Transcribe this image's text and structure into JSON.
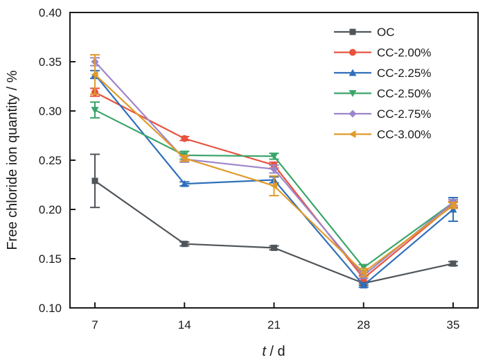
{
  "chart_data": {
    "type": "line",
    "title": "",
    "xlabel_italic": "t",
    "xlabel_rest": " / d",
    "ylabel": "Free chloride ion quantity / %",
    "x": [
      7,
      14,
      21,
      28,
      35
    ],
    "x_tick_labels": [
      "7",
      "14",
      "21",
      "28",
      "35"
    ],
    "xlim": [
      5,
      38.5
    ],
    "ylim": [
      0.1,
      0.4
    ],
    "y_ticks": [
      0.1,
      0.15,
      0.2,
      0.25,
      0.3,
      0.35,
      0.4
    ],
    "y_tick_labels": [
      "0.10",
      "0.15",
      "0.20",
      "0.25",
      "0.30",
      "0.35",
      "0.40"
    ],
    "grid": false,
    "legend_position": "top-right",
    "series": [
      {
        "name": "OC",
        "color": "#505559",
        "marker": "square",
        "values": [
          0.229,
          0.165,
          0.161,
          0.125,
          0.145
        ],
        "errors": [
          0.027,
          0.002,
          0.002,
          0.002,
          0.002
        ]
      },
      {
        "name": "CC-2.00%",
        "color": "#e8533f",
        "marker": "circle",
        "values": [
          0.319,
          0.272,
          0.245,
          0.13,
          0.205
        ],
        "errors": [
          0.004,
          0.002,
          0.003,
          0.003,
          0.003
        ]
      },
      {
        "name": "CC-2.25%",
        "color": "#2f6fba",
        "marker": "triangle-up",
        "values": [
          0.337,
          0.226,
          0.23,
          0.123,
          0.2
        ],
        "errors": [
          0.004,
          0.002,
          0.003,
          0.002,
          0.012
        ]
      },
      {
        "name": "CC-2.50%",
        "color": "#3aa56a",
        "marker": "triangle-down",
        "values": [
          0.301,
          0.255,
          0.254,
          0.141,
          0.207
        ],
        "errors": [
          0.008,
          0.004,
          0.003,
          0.003,
          0.003
        ]
      },
      {
        "name": "CC-2.75%",
        "color": "#9c85c8",
        "marker": "diamond",
        "values": [
          0.35,
          0.251,
          0.241,
          0.133,
          0.207
        ],
        "errors": [
          0.004,
          0.003,
          0.004,
          0.003,
          0.003
        ]
      },
      {
        "name": "CC-3.00%",
        "color": "#e09a2a",
        "marker": "triangle-left",
        "values": [
          0.337,
          0.252,
          0.224,
          0.136,
          0.204
        ],
        "errors": [
          0.02,
          0.003,
          0.01,
          0.004,
          0.003
        ]
      }
    ]
  }
}
